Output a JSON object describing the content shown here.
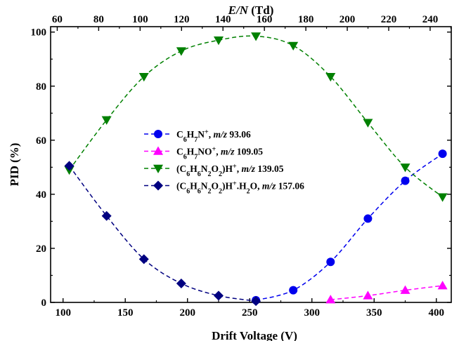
{
  "chart_data": {
    "type": "scatter",
    "xlabel": "Drift Voltage (V)",
    "x2label": {
      "italic": "E/N",
      "rest": " (Td)"
    },
    "ylabel": "PID (%)",
    "xlim": [
      90,
      412
    ],
    "ylim": [
      0,
      102
    ],
    "x2lim": [
      56.8,
      250.2
    ],
    "xticks": [
      100,
      150,
      200,
      250,
      300,
      350,
      400
    ],
    "yticks": [
      0,
      20,
      40,
      60,
      80,
      100
    ],
    "x2ticks": [
      60,
      80,
      100,
      120,
      140,
      160,
      180,
      200,
      220,
      240
    ],
    "grid": false,
    "legend_position": "center-left",
    "series": [
      {
        "name": "C6H7N+, m/z 93.06",
        "label": [
          {
            "t": "C"
          },
          {
            "t": "6",
            "sub": true
          },
          {
            "t": "H"
          },
          {
            "t": "7",
            "sub": true
          },
          {
            "t": "N"
          },
          {
            "t": "+",
            "sup": true
          },
          {
            "t": ", "
          },
          {
            "t": "m/z",
            "italic": true
          },
          {
            "t": " 93.06"
          }
        ],
        "color": "#0000ee",
        "marker": "circle",
        "x": [
          255,
          285,
          315,
          345,
          375,
          405
        ],
        "y": [
          0.8,
          4.5,
          15,
          31,
          45,
          55
        ]
      },
      {
        "name": "C6H7NO+, m/z 109.05",
        "label": [
          {
            "t": "C"
          },
          {
            "t": "6",
            "sub": true
          },
          {
            "t": "H"
          },
          {
            "t": "7",
            "sub": true
          },
          {
            "t": "NO"
          },
          {
            "t": "+",
            "sup": true
          },
          {
            "t": ", "
          },
          {
            "t": "m/z",
            "italic": true
          },
          {
            "t": " 109.05"
          }
        ],
        "color": "#ff00ff",
        "marker": "triangle-up",
        "x": [
          315,
          345,
          375,
          405
        ],
        "y": [
          1,
          2.5,
          4.5,
          6.2
        ]
      },
      {
        "name": "(C6H6N2O2)H+, m/z 139.05",
        "label": [
          {
            "t": "(C"
          },
          {
            "t": "6",
            "sub": true
          },
          {
            "t": "H"
          },
          {
            "t": "6",
            "sub": true
          },
          {
            "t": "N"
          },
          {
            "t": "2",
            "sub": true
          },
          {
            "t": "O"
          },
          {
            "t": "2",
            "sub": true
          },
          {
            "t": ")H"
          },
          {
            "t": "+",
            "sup": true
          },
          {
            "t": ", "
          },
          {
            "t": "m/z",
            "italic": true
          },
          {
            "t": " 139.05"
          }
        ],
        "color": "#008000",
        "marker": "triangle-down",
        "x": [
          105,
          135,
          165,
          195,
          225,
          255,
          285,
          315,
          345,
          375,
          405
        ],
        "y": [
          49,
          67.5,
          83.5,
          93,
          97,
          98.5,
          95,
          83.5,
          66.5,
          50,
          39
        ]
      },
      {
        "name": "(C6H6N2O2)H+.H2O, m/z 157.06",
        "label": [
          {
            "t": "(C"
          },
          {
            "t": "6",
            "sub": true
          },
          {
            "t": "H"
          },
          {
            "t": "6",
            "sub": true
          },
          {
            "t": "N"
          },
          {
            "t": "2",
            "sub": true
          },
          {
            "t": "O"
          },
          {
            "t": "2",
            "sub": true
          },
          {
            "t": ")H"
          },
          {
            "t": "+",
            "sup": true
          },
          {
            "t": ".H"
          },
          {
            "t": "2",
            "sub": true
          },
          {
            "t": "O, "
          },
          {
            "t": "m/z",
            "italic": true
          },
          {
            "t": " 157.06"
          }
        ],
        "color": "#000080",
        "marker": "diamond",
        "x": [
          105,
          135,
          165,
          195,
          225,
          255
        ],
        "y": [
          50.5,
          32,
          16,
          7,
          2.5,
          0.5
        ]
      }
    ]
  }
}
